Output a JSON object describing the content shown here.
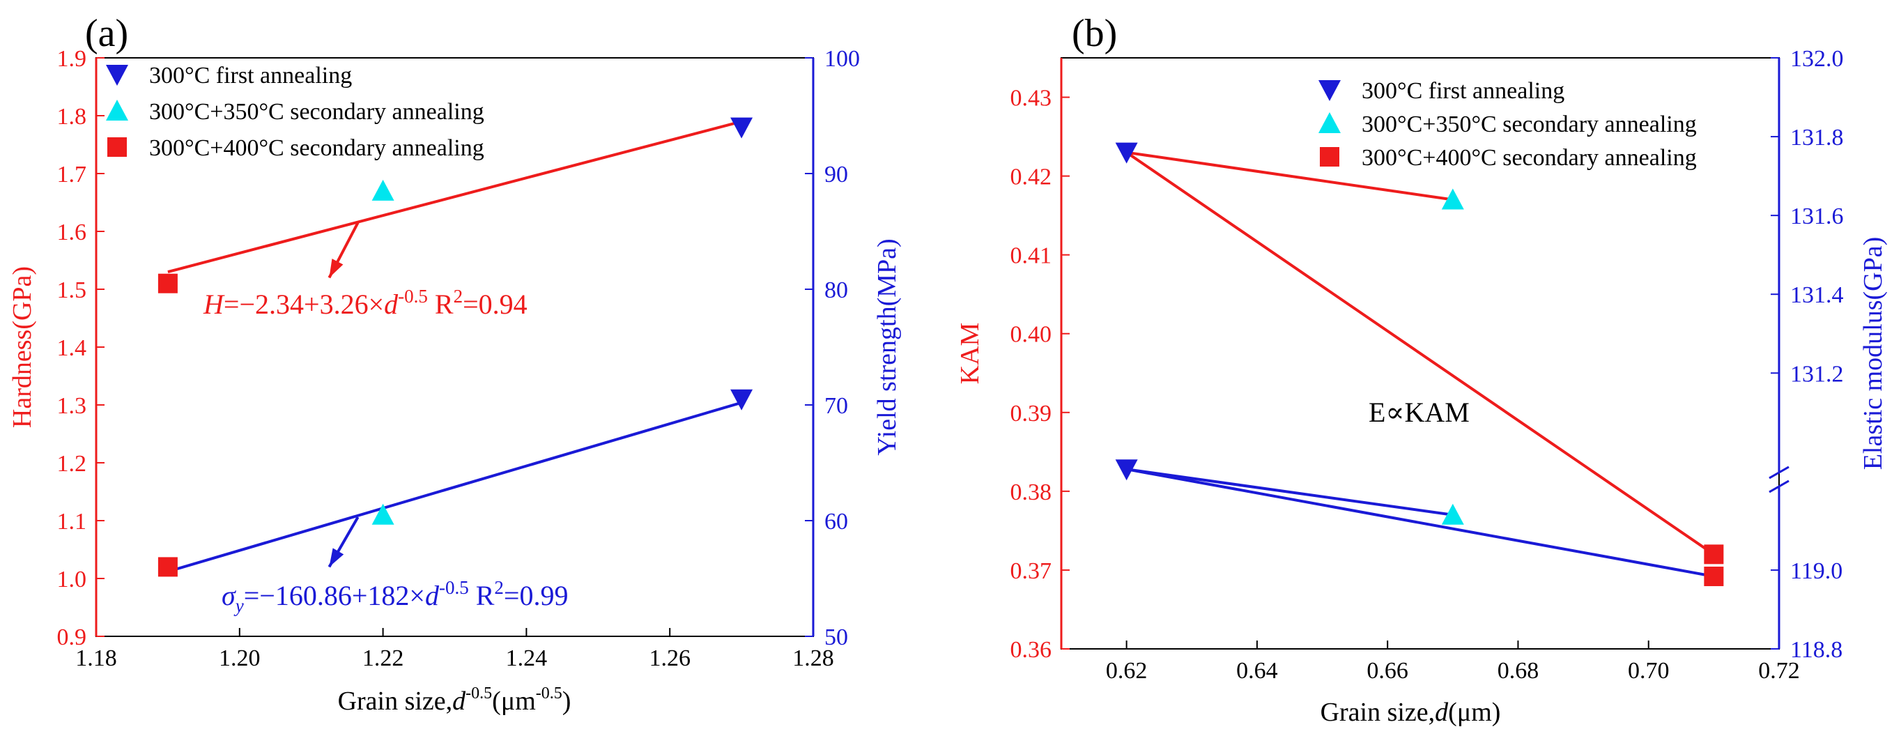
{
  "chart_data": [
    {
      "type": "scatter",
      "panel_label": "(a)",
      "xlabel": "Grain size,",
      "xlabel_var": "d",
      "xlabel_sup": "-0.5",
      "xlabel_unit_pre": "(μm",
      "xlabel_unit_sup": "-0.5",
      "xlabel_unit_post": ")",
      "ylabel_left": "Hardness(GPa)",
      "ylabel_right": "Yield strength(MPa)",
      "xlim": [
        1.18,
        1.28
      ],
      "ylim_left": [
        0.9,
        1.9
      ],
      "ylim_right": [
        50,
        100
      ],
      "x_ticks": [
        "1.18",
        "1.20",
        "1.22",
        "1.24",
        "1.26",
        "1.28"
      ],
      "y_left_ticks": [
        "0.9",
        "1.0",
        "1.1",
        "1.2",
        "1.3",
        "1.4",
        "1.5",
        "1.6",
        "1.7",
        "1.8",
        "1.9"
      ],
      "y_right_ticks": [
        "50",
        "60",
        "70",
        "80",
        "90",
        "100"
      ],
      "legend": [
        {
          "label": "300°C first annealing",
          "marker": "triangle-down",
          "color": "#1a1ad6"
        },
        {
          "label": "300°C+350°C secondary annealing",
          "marker": "triangle-up",
          "color": "#00e5ee"
        },
        {
          "label": "300°C+400°C secondary annealing",
          "marker": "square",
          "color": "#ee1c1c"
        }
      ],
      "points": [
        {
          "series": "300°C+400°C secondary annealing",
          "x": 1.19,
          "hardness": 1.51,
          "yield_strength": 56
        },
        {
          "series": "300°C+350°C secondary annealing",
          "x": 1.22,
          "hardness": 1.67,
          "yield_strength": 60.5
        },
        {
          "series": "300°C first annealing",
          "x": 1.27,
          "hardness": 1.78,
          "yield_strength": 70.5
        }
      ],
      "fits": [
        {
          "axis": "left",
          "color": "#ee1c1c",
          "x": [
            1.19,
            1.27
          ],
          "y": [
            1.53,
            1.79
          ],
          "eq_var": "H",
          "eq_sub": "",
          "eq_body": "=−2.34+3.26×",
          "eq_d": "d",
          "eq_sup": "-0.5",
          "eq_r": " R",
          "eq_r_sup": "2",
          "eq_r_val": "=0.94",
          "arrow_from": [
            1.2165,
            1.615
          ],
          "arrow_to": [
            1.2125,
            1.52
          ]
        },
        {
          "axis": "right",
          "color": "#1a1ad6",
          "x": [
            1.19,
            1.27
          ],
          "y": [
            55.6,
            70.2
          ],
          "eq_var": "σ",
          "eq_sub": "y",
          "eq_body": "=−160.86+182×",
          "eq_d": "d",
          "eq_sup": "-0.5",
          "eq_r": " R",
          "eq_r_sup": "2",
          "eq_r_val": "=0.99",
          "arrow_from": [
            1.2165,
            60.3
          ],
          "arrow_to": [
            1.2125,
            56.0
          ]
        }
      ]
    },
    {
      "type": "line",
      "panel_label": "(b)",
      "xlabel": "Grain size,",
      "xlabel_var": "d",
      "xlabel_unit": "(μm)",
      "ylabel_left": "KAM",
      "ylabel_right": "Elastic modulus(GPa)",
      "xlim": [
        0.61,
        0.72
      ],
      "ylim_left": [
        0.36,
        0.435
      ],
      "x_ticks": [
        "0.62",
        "0.64",
        "0.66",
        "0.68",
        "0.70",
        "0.72"
      ],
      "y_left_ticks": [
        "0.36",
        "0.37",
        "0.38",
        "0.39",
        "0.40",
        "0.41",
        "0.42",
        "0.43"
      ],
      "y_right_ticks": [
        "118.8",
        "119.0",
        "131.2",
        "131.4",
        "131.6",
        "131.8",
        "132.0"
      ],
      "right_axis_break": true,
      "annotation": "E∝KAM",
      "legend": [
        {
          "label": "300°C first annealing",
          "marker": "triangle-down",
          "color": "#1a1ad6"
        },
        {
          "label": "300°C+350°C secondary annealing",
          "marker": "triangle-up",
          "color": "#00e5ee"
        },
        {
          "label": "300°C+400°C secondary annealing",
          "marker": "square",
          "color": "#ee1c1c"
        }
      ],
      "series": [
        {
          "name": "KAM",
          "color": "#ee1c1c",
          "path": [
            [
              0.62,
              0.423
            ],
            [
              0.67,
              0.417
            ],
            [
              0.62,
              0.423
            ],
            [
              0.71,
              0.372
            ]
          ]
        },
        {
          "name": "Elastic modulus",
          "color": "#1a1ad6",
          "path": [
            [
              0.62,
              0.3828
            ],
            [
              0.67,
              0.377
            ],
            [
              0.62,
              0.3828
            ],
            [
              0.71,
              0.3692
            ]
          ]
        }
      ],
      "points": [
        {
          "series": "300°C first annealing",
          "x": 0.62,
          "kam": 0.423,
          "modulus_plot": 0.3828
        },
        {
          "series": "300°C+350°C secondary annealing",
          "x": 0.67,
          "kam": 0.417,
          "modulus_plot": 0.377
        },
        {
          "series": "300°C+400°C secondary annealing",
          "x": 0.71,
          "kam": 0.372,
          "modulus_plot": 0.3692
        }
      ]
    }
  ]
}
